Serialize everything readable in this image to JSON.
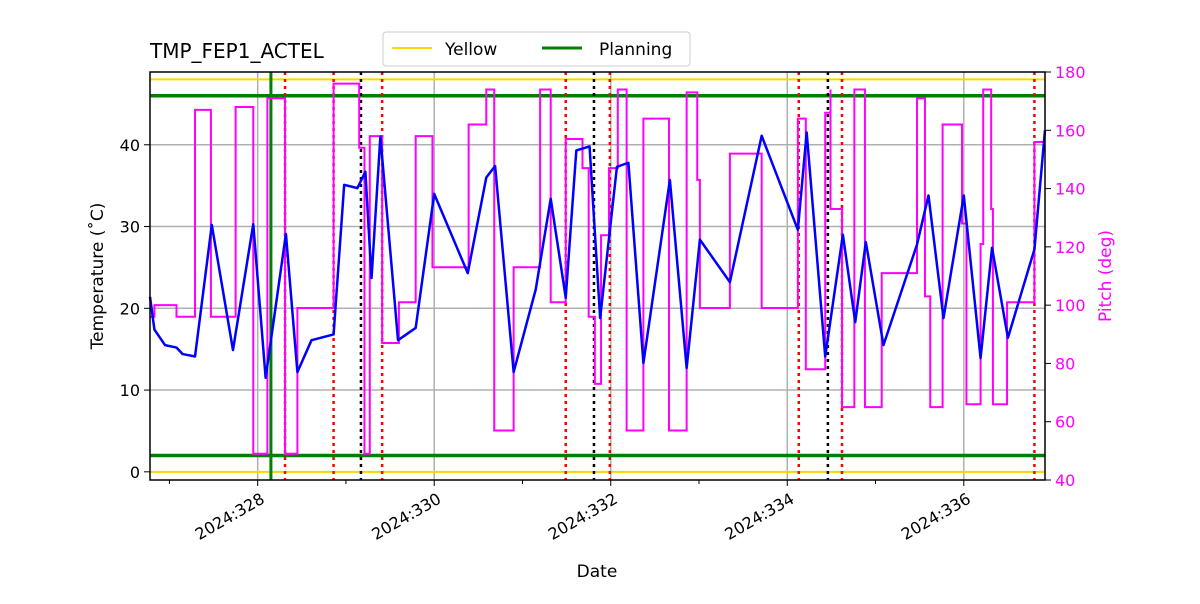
{
  "chart_data": {
    "type": "line",
    "title": "TMP_FEP1_ACTEL",
    "xlabel": "Date",
    "ylabel": "Temperature ($^\\circ$C)",
    "ylabel_display": "Temperature (˚C)",
    "y2label": "Pitch (deg)",
    "xlim": [
      326.78,
      336.92
    ],
    "ylim": [
      -1,
      48.9
    ],
    "y2lim": [
      40,
      180
    ],
    "grid": true,
    "legend_placement": "top-center",
    "x_ticks": [
      {
        "v": 328,
        "label": "2024:328"
      },
      {
        "v": 330,
        "label": "2024:330"
      },
      {
        "v": 332,
        "label": "2024:332"
      },
      {
        "v": 334,
        "label": "2024:334"
      },
      {
        "v": 336,
        "label": "2024:336"
      }
    ],
    "x_minor_ticks": [
      327,
      329,
      331,
      333,
      335
    ],
    "y_ticks": [
      0,
      10,
      20,
      30,
      40
    ],
    "y2_ticks": [
      40,
      60,
      80,
      100,
      120,
      140,
      160,
      180
    ],
    "colors": {
      "temperature": "#0000ff",
      "pitch": "#ff00ff",
      "yellow": "#ffd700",
      "planning": "#008000",
      "red_lines": "#ff0000",
      "black_lines": "#000000",
      "grid": "#b0b0b0"
    },
    "limits": [
      {
        "name": "Yellow",
        "values": [
          0,
          48
        ],
        "color": "#ffd700"
      },
      {
        "name": "Planning",
        "values": [
          2,
          46
        ],
        "color": "#008000"
      }
    ],
    "legend": [
      {
        "label": "Yellow",
        "color": "#ffd700"
      },
      {
        "label": "Planning",
        "color": "#008000"
      }
    ],
    "vertical_green": [
      328.15
    ],
    "vertical_red": [
      328.31,
      328.86,
      329.41,
      331.49,
      331.99,
      334.13,
      334.62,
      336.8
    ],
    "vertical_black": [
      329.17,
      331.81,
      334.46
    ],
    "temperature": [
      [
        326.78,
        21.4
      ],
      [
        326.83,
        17.4
      ],
      [
        326.95,
        15.5
      ],
      [
        327.08,
        15.2
      ],
      [
        327.15,
        14.4
      ],
      [
        327.29,
        14.1
      ],
      [
        327.48,
        30.2
      ],
      [
        327.72,
        14.9
      ],
      [
        327.95,
        30.3
      ],
      [
        328.09,
        11.5
      ],
      [
        328.32,
        29.1
      ],
      [
        328.45,
        12.2
      ],
      [
        328.61,
        16.1
      ],
      [
        328.86,
        16.8
      ],
      [
        328.98,
        35.1
      ],
      [
        329.13,
        34.7
      ],
      [
        329.22,
        36.7
      ],
      [
        329.29,
        23.7
      ],
      [
        329.39,
        41.0
      ],
      [
        329.59,
        16.1
      ],
      [
        329.79,
        17.6
      ],
      [
        330.0,
        34.0
      ],
      [
        330.38,
        24.3
      ],
      [
        330.59,
        36.0
      ],
      [
        330.69,
        37.4
      ],
      [
        330.9,
        12.2
      ],
      [
        331.15,
        22.3
      ],
      [
        331.32,
        33.4
      ],
      [
        331.49,
        21.3
      ],
      [
        331.61,
        39.3
      ],
      [
        331.76,
        39.8
      ],
      [
        331.88,
        18.8
      ],
      [
        332.07,
        37.3
      ],
      [
        332.2,
        37.8
      ],
      [
        332.37,
        13.3
      ],
      [
        332.67,
        35.7
      ],
      [
        332.86,
        12.7
      ],
      [
        333.01,
        28.4
      ],
      [
        333.35,
        23.2
      ],
      [
        333.71,
        41.1
      ],
      [
        334.12,
        29.6
      ],
      [
        334.22,
        41.5
      ],
      [
        334.43,
        14.1
      ],
      [
        334.63,
        29.0
      ],
      [
        334.77,
        18.3
      ],
      [
        334.89,
        28.1
      ],
      [
        335.09,
        15.5
      ],
      [
        335.47,
        27.8
      ],
      [
        335.6,
        33.8
      ],
      [
        335.77,
        18.8
      ],
      [
        336.0,
        33.8
      ],
      [
        336.19,
        13.9
      ],
      [
        336.32,
        27.4
      ],
      [
        336.5,
        16.4
      ],
      [
        336.8,
        27.2
      ],
      [
        336.92,
        41.8
      ]
    ],
    "pitch": [
      [
        326.78,
        96
      ],
      [
        326.83,
        96
      ],
      [
        326.83,
        100
      ],
      [
        327.08,
        100
      ],
      [
        327.08,
        96
      ],
      [
        327.29,
        96
      ],
      [
        327.29,
        167
      ],
      [
        327.47,
        167
      ],
      [
        327.47,
        96
      ],
      [
        327.75,
        96
      ],
      [
        327.75,
        168
      ],
      [
        327.95,
        168
      ],
      [
        327.95,
        49
      ],
      [
        328.11,
        49
      ],
      [
        328.11,
        171
      ],
      [
        328.31,
        171
      ],
      [
        328.31,
        49
      ],
      [
        328.45,
        49
      ],
      [
        328.45,
        99
      ],
      [
        328.86,
        99
      ],
      [
        328.86,
        176
      ],
      [
        329.15,
        176
      ],
      [
        329.15,
        154
      ],
      [
        329.21,
        154
      ],
      [
        329.21,
        49
      ],
      [
        329.27,
        49
      ],
      [
        329.27,
        158
      ],
      [
        329.41,
        158
      ],
      [
        329.41,
        87
      ],
      [
        329.6,
        87
      ],
      [
        329.6,
        101
      ],
      [
        329.79,
        101
      ],
      [
        329.79,
        158
      ],
      [
        329.98,
        158
      ],
      [
        329.98,
        113
      ],
      [
        330.39,
        113
      ],
      [
        330.39,
        162
      ],
      [
        330.59,
        162
      ],
      [
        330.59,
        174
      ],
      [
        330.68,
        174
      ],
      [
        330.68,
        57
      ],
      [
        330.9,
        57
      ],
      [
        330.9,
        113
      ],
      [
        331.2,
        113
      ],
      [
        331.2,
        174
      ],
      [
        331.32,
        174
      ],
      [
        331.32,
        101
      ],
      [
        331.49,
        101
      ],
      [
        331.49,
        157
      ],
      [
        331.68,
        157
      ],
      [
        331.68,
        147
      ],
      [
        331.75,
        147
      ],
      [
        331.75,
        96
      ],
      [
        331.82,
        96
      ],
      [
        331.82,
        73
      ],
      [
        331.89,
        73
      ],
      [
        331.89,
        124
      ],
      [
        331.98,
        124
      ],
      [
        331.98,
        147
      ],
      [
        332.08,
        147
      ],
      [
        332.08,
        174
      ],
      [
        332.18,
        174
      ],
      [
        332.18,
        57
      ],
      [
        332.37,
        57
      ],
      [
        332.37,
        164
      ],
      [
        332.66,
        164
      ],
      [
        332.66,
        57
      ],
      [
        332.86,
        57
      ],
      [
        332.86,
        173
      ],
      [
        332.98,
        173
      ],
      [
        332.98,
        143
      ],
      [
        333.01,
        143
      ],
      [
        333.01,
        99
      ],
      [
        333.35,
        99
      ],
      [
        333.35,
        152
      ],
      [
        333.71,
        152
      ],
      [
        333.71,
        99
      ],
      [
        334.12,
        99
      ],
      [
        334.12,
        164
      ],
      [
        334.21,
        164
      ],
      [
        334.21,
        78
      ],
      [
        334.43,
        78
      ],
      [
        334.43,
        166
      ],
      [
        334.49,
        166
      ],
      [
        334.49,
        174
      ],
      [
        334.49,
        133
      ],
      [
        334.62,
        133
      ],
      [
        334.62,
        65
      ],
      [
        334.76,
        65
      ],
      [
        334.76,
        174
      ],
      [
        334.88,
        174
      ],
      [
        334.88,
        65
      ],
      [
        335.07,
        65
      ],
      [
        335.07,
        111
      ],
      [
        335.47,
        111
      ],
      [
        335.47,
        171
      ],
      [
        335.56,
        171
      ],
      [
        335.56,
        103
      ],
      [
        335.62,
        103
      ],
      [
        335.62,
        65
      ],
      [
        335.76,
        65
      ],
      [
        335.76,
        162
      ],
      [
        335.98,
        162
      ],
      [
        335.98,
        128
      ],
      [
        336.03,
        128
      ],
      [
        336.03,
        66
      ],
      [
        336.19,
        66
      ],
      [
        336.19,
        121
      ],
      [
        336.22,
        121
      ],
      [
        336.22,
        174
      ],
      [
        336.31,
        174
      ],
      [
        336.31,
        133
      ],
      [
        336.33,
        133
      ],
      [
        336.33,
        66
      ],
      [
        336.49,
        66
      ],
      [
        336.49,
        101
      ],
      [
        336.8,
        101
      ],
      [
        336.8,
        156
      ],
      [
        336.92,
        156
      ]
    ]
  }
}
